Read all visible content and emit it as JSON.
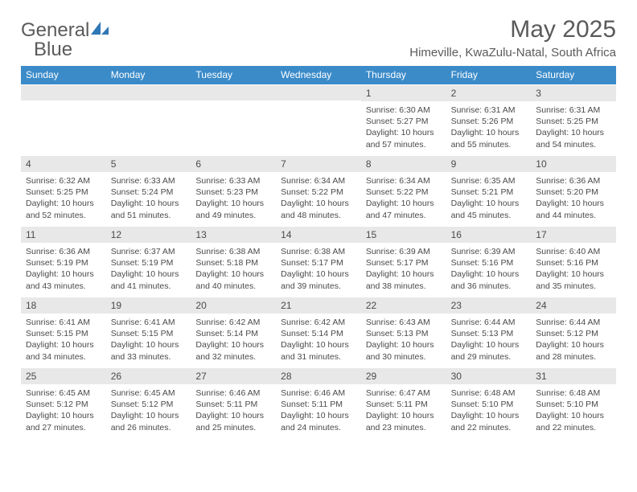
{
  "logo": {
    "word1": "General",
    "word2": "Blue"
  },
  "title": "May 2025",
  "location": "Himeville, KwaZulu-Natal, South Africa",
  "colors": {
    "header_bg": "#3b8bc9",
    "header_text": "#ffffff",
    "daynum_bg": "#e8e8e8",
    "body_text": "#4a4a4a",
    "title_text": "#5a5a5a",
    "logo_icon": "#2f77b5"
  },
  "day_names": [
    "Sunday",
    "Monday",
    "Tuesday",
    "Wednesday",
    "Thursday",
    "Friday",
    "Saturday"
  ],
  "weeks": [
    [
      {
        "num": "",
        "sunrise": "",
        "sunset": "",
        "daylight": ""
      },
      {
        "num": "",
        "sunrise": "",
        "sunset": "",
        "daylight": ""
      },
      {
        "num": "",
        "sunrise": "",
        "sunset": "",
        "daylight": ""
      },
      {
        "num": "",
        "sunrise": "",
        "sunset": "",
        "daylight": ""
      },
      {
        "num": "1",
        "sunrise": "Sunrise: 6:30 AM",
        "sunset": "Sunset: 5:27 PM",
        "daylight": "Daylight: 10 hours and 57 minutes."
      },
      {
        "num": "2",
        "sunrise": "Sunrise: 6:31 AM",
        "sunset": "Sunset: 5:26 PM",
        "daylight": "Daylight: 10 hours and 55 minutes."
      },
      {
        "num": "3",
        "sunrise": "Sunrise: 6:31 AM",
        "sunset": "Sunset: 5:25 PM",
        "daylight": "Daylight: 10 hours and 54 minutes."
      }
    ],
    [
      {
        "num": "4",
        "sunrise": "Sunrise: 6:32 AM",
        "sunset": "Sunset: 5:25 PM",
        "daylight": "Daylight: 10 hours and 52 minutes."
      },
      {
        "num": "5",
        "sunrise": "Sunrise: 6:33 AM",
        "sunset": "Sunset: 5:24 PM",
        "daylight": "Daylight: 10 hours and 51 minutes."
      },
      {
        "num": "6",
        "sunrise": "Sunrise: 6:33 AM",
        "sunset": "Sunset: 5:23 PM",
        "daylight": "Daylight: 10 hours and 49 minutes."
      },
      {
        "num": "7",
        "sunrise": "Sunrise: 6:34 AM",
        "sunset": "Sunset: 5:22 PM",
        "daylight": "Daylight: 10 hours and 48 minutes."
      },
      {
        "num": "8",
        "sunrise": "Sunrise: 6:34 AM",
        "sunset": "Sunset: 5:22 PM",
        "daylight": "Daylight: 10 hours and 47 minutes."
      },
      {
        "num": "9",
        "sunrise": "Sunrise: 6:35 AM",
        "sunset": "Sunset: 5:21 PM",
        "daylight": "Daylight: 10 hours and 45 minutes."
      },
      {
        "num": "10",
        "sunrise": "Sunrise: 6:36 AM",
        "sunset": "Sunset: 5:20 PM",
        "daylight": "Daylight: 10 hours and 44 minutes."
      }
    ],
    [
      {
        "num": "11",
        "sunrise": "Sunrise: 6:36 AM",
        "sunset": "Sunset: 5:19 PM",
        "daylight": "Daylight: 10 hours and 43 minutes."
      },
      {
        "num": "12",
        "sunrise": "Sunrise: 6:37 AM",
        "sunset": "Sunset: 5:19 PM",
        "daylight": "Daylight: 10 hours and 41 minutes."
      },
      {
        "num": "13",
        "sunrise": "Sunrise: 6:38 AM",
        "sunset": "Sunset: 5:18 PM",
        "daylight": "Daylight: 10 hours and 40 minutes."
      },
      {
        "num": "14",
        "sunrise": "Sunrise: 6:38 AM",
        "sunset": "Sunset: 5:17 PM",
        "daylight": "Daylight: 10 hours and 39 minutes."
      },
      {
        "num": "15",
        "sunrise": "Sunrise: 6:39 AM",
        "sunset": "Sunset: 5:17 PM",
        "daylight": "Daylight: 10 hours and 38 minutes."
      },
      {
        "num": "16",
        "sunrise": "Sunrise: 6:39 AM",
        "sunset": "Sunset: 5:16 PM",
        "daylight": "Daylight: 10 hours and 36 minutes."
      },
      {
        "num": "17",
        "sunrise": "Sunrise: 6:40 AM",
        "sunset": "Sunset: 5:16 PM",
        "daylight": "Daylight: 10 hours and 35 minutes."
      }
    ],
    [
      {
        "num": "18",
        "sunrise": "Sunrise: 6:41 AM",
        "sunset": "Sunset: 5:15 PM",
        "daylight": "Daylight: 10 hours and 34 minutes."
      },
      {
        "num": "19",
        "sunrise": "Sunrise: 6:41 AM",
        "sunset": "Sunset: 5:15 PM",
        "daylight": "Daylight: 10 hours and 33 minutes."
      },
      {
        "num": "20",
        "sunrise": "Sunrise: 6:42 AM",
        "sunset": "Sunset: 5:14 PM",
        "daylight": "Daylight: 10 hours and 32 minutes."
      },
      {
        "num": "21",
        "sunrise": "Sunrise: 6:42 AM",
        "sunset": "Sunset: 5:14 PM",
        "daylight": "Daylight: 10 hours and 31 minutes."
      },
      {
        "num": "22",
        "sunrise": "Sunrise: 6:43 AM",
        "sunset": "Sunset: 5:13 PM",
        "daylight": "Daylight: 10 hours and 30 minutes."
      },
      {
        "num": "23",
        "sunrise": "Sunrise: 6:44 AM",
        "sunset": "Sunset: 5:13 PM",
        "daylight": "Daylight: 10 hours and 29 minutes."
      },
      {
        "num": "24",
        "sunrise": "Sunrise: 6:44 AM",
        "sunset": "Sunset: 5:12 PM",
        "daylight": "Daylight: 10 hours and 28 minutes."
      }
    ],
    [
      {
        "num": "25",
        "sunrise": "Sunrise: 6:45 AM",
        "sunset": "Sunset: 5:12 PM",
        "daylight": "Daylight: 10 hours and 27 minutes."
      },
      {
        "num": "26",
        "sunrise": "Sunrise: 6:45 AM",
        "sunset": "Sunset: 5:12 PM",
        "daylight": "Daylight: 10 hours and 26 minutes."
      },
      {
        "num": "27",
        "sunrise": "Sunrise: 6:46 AM",
        "sunset": "Sunset: 5:11 PM",
        "daylight": "Daylight: 10 hours and 25 minutes."
      },
      {
        "num": "28",
        "sunrise": "Sunrise: 6:46 AM",
        "sunset": "Sunset: 5:11 PM",
        "daylight": "Daylight: 10 hours and 24 minutes."
      },
      {
        "num": "29",
        "sunrise": "Sunrise: 6:47 AM",
        "sunset": "Sunset: 5:11 PM",
        "daylight": "Daylight: 10 hours and 23 minutes."
      },
      {
        "num": "30",
        "sunrise": "Sunrise: 6:48 AM",
        "sunset": "Sunset: 5:10 PM",
        "daylight": "Daylight: 10 hours and 22 minutes."
      },
      {
        "num": "31",
        "sunrise": "Sunrise: 6:48 AM",
        "sunset": "Sunset: 5:10 PM",
        "daylight": "Daylight: 10 hours and 22 minutes."
      }
    ]
  ]
}
